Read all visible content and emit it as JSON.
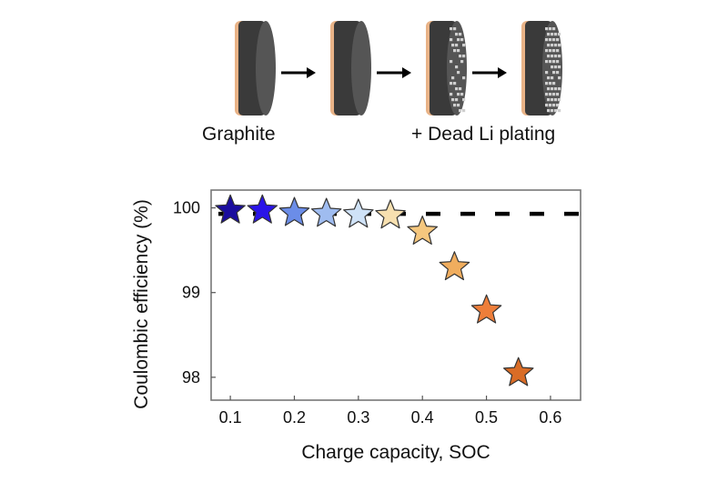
{
  "illustration": {
    "labels": {
      "start": "Graphite",
      "end": "+ Dead Li plating"
    },
    "stages": [
      "pristine",
      "lithiated",
      "partial-plating",
      "full-plating"
    ],
    "colors": {
      "current_collector": "#e9b387",
      "graphite_dark": "#3a3a3a",
      "graphite_face": "#555555",
      "plating": "#cfcfcf"
    }
  },
  "chart_data": {
    "type": "scatter",
    "marker": "star",
    "xlabel": "Charge capacity, SOC",
    "ylabel": "Coulombic efficiency (%)",
    "xlim": [
      0.07,
      0.647
    ],
    "ylim": [
      97.73,
      100.21
    ],
    "xticks": [
      "0.1",
      "0.2",
      "0.3",
      "0.4",
      "0.5",
      "0.6"
    ],
    "xtick_values": [
      0.1,
      0.2,
      0.3,
      0.4,
      0.5,
      0.6
    ],
    "yticks": [
      "98",
      "99",
      "100"
    ],
    "ytick_values": [
      98,
      99,
      100
    ],
    "grid": false,
    "reference_line": {
      "y": 99.93,
      "style": "dashed",
      "color": "#000000"
    },
    "points": [
      {
        "x": 0.1,
        "y": 99.97,
        "color": "#1a0d9e"
      },
      {
        "x": 0.15,
        "y": 99.97,
        "color": "#2a14e8"
      },
      {
        "x": 0.2,
        "y": 99.94,
        "color": "#6b8de8"
      },
      {
        "x": 0.25,
        "y": 99.93,
        "color": "#9fbcf0"
      },
      {
        "x": 0.3,
        "y": 99.92,
        "color": "#cfe2f7"
      },
      {
        "x": 0.35,
        "y": 99.91,
        "color": "#f7e0b0"
      },
      {
        "x": 0.4,
        "y": 99.72,
        "color": "#f5c77e"
      },
      {
        "x": 0.45,
        "y": 99.3,
        "color": "#f0ad5e"
      },
      {
        "x": 0.5,
        "y": 98.79,
        "color": "#ee7e3a"
      },
      {
        "x": 0.55,
        "y": 98.05,
        "color": "#d96c26"
      }
    ]
  }
}
